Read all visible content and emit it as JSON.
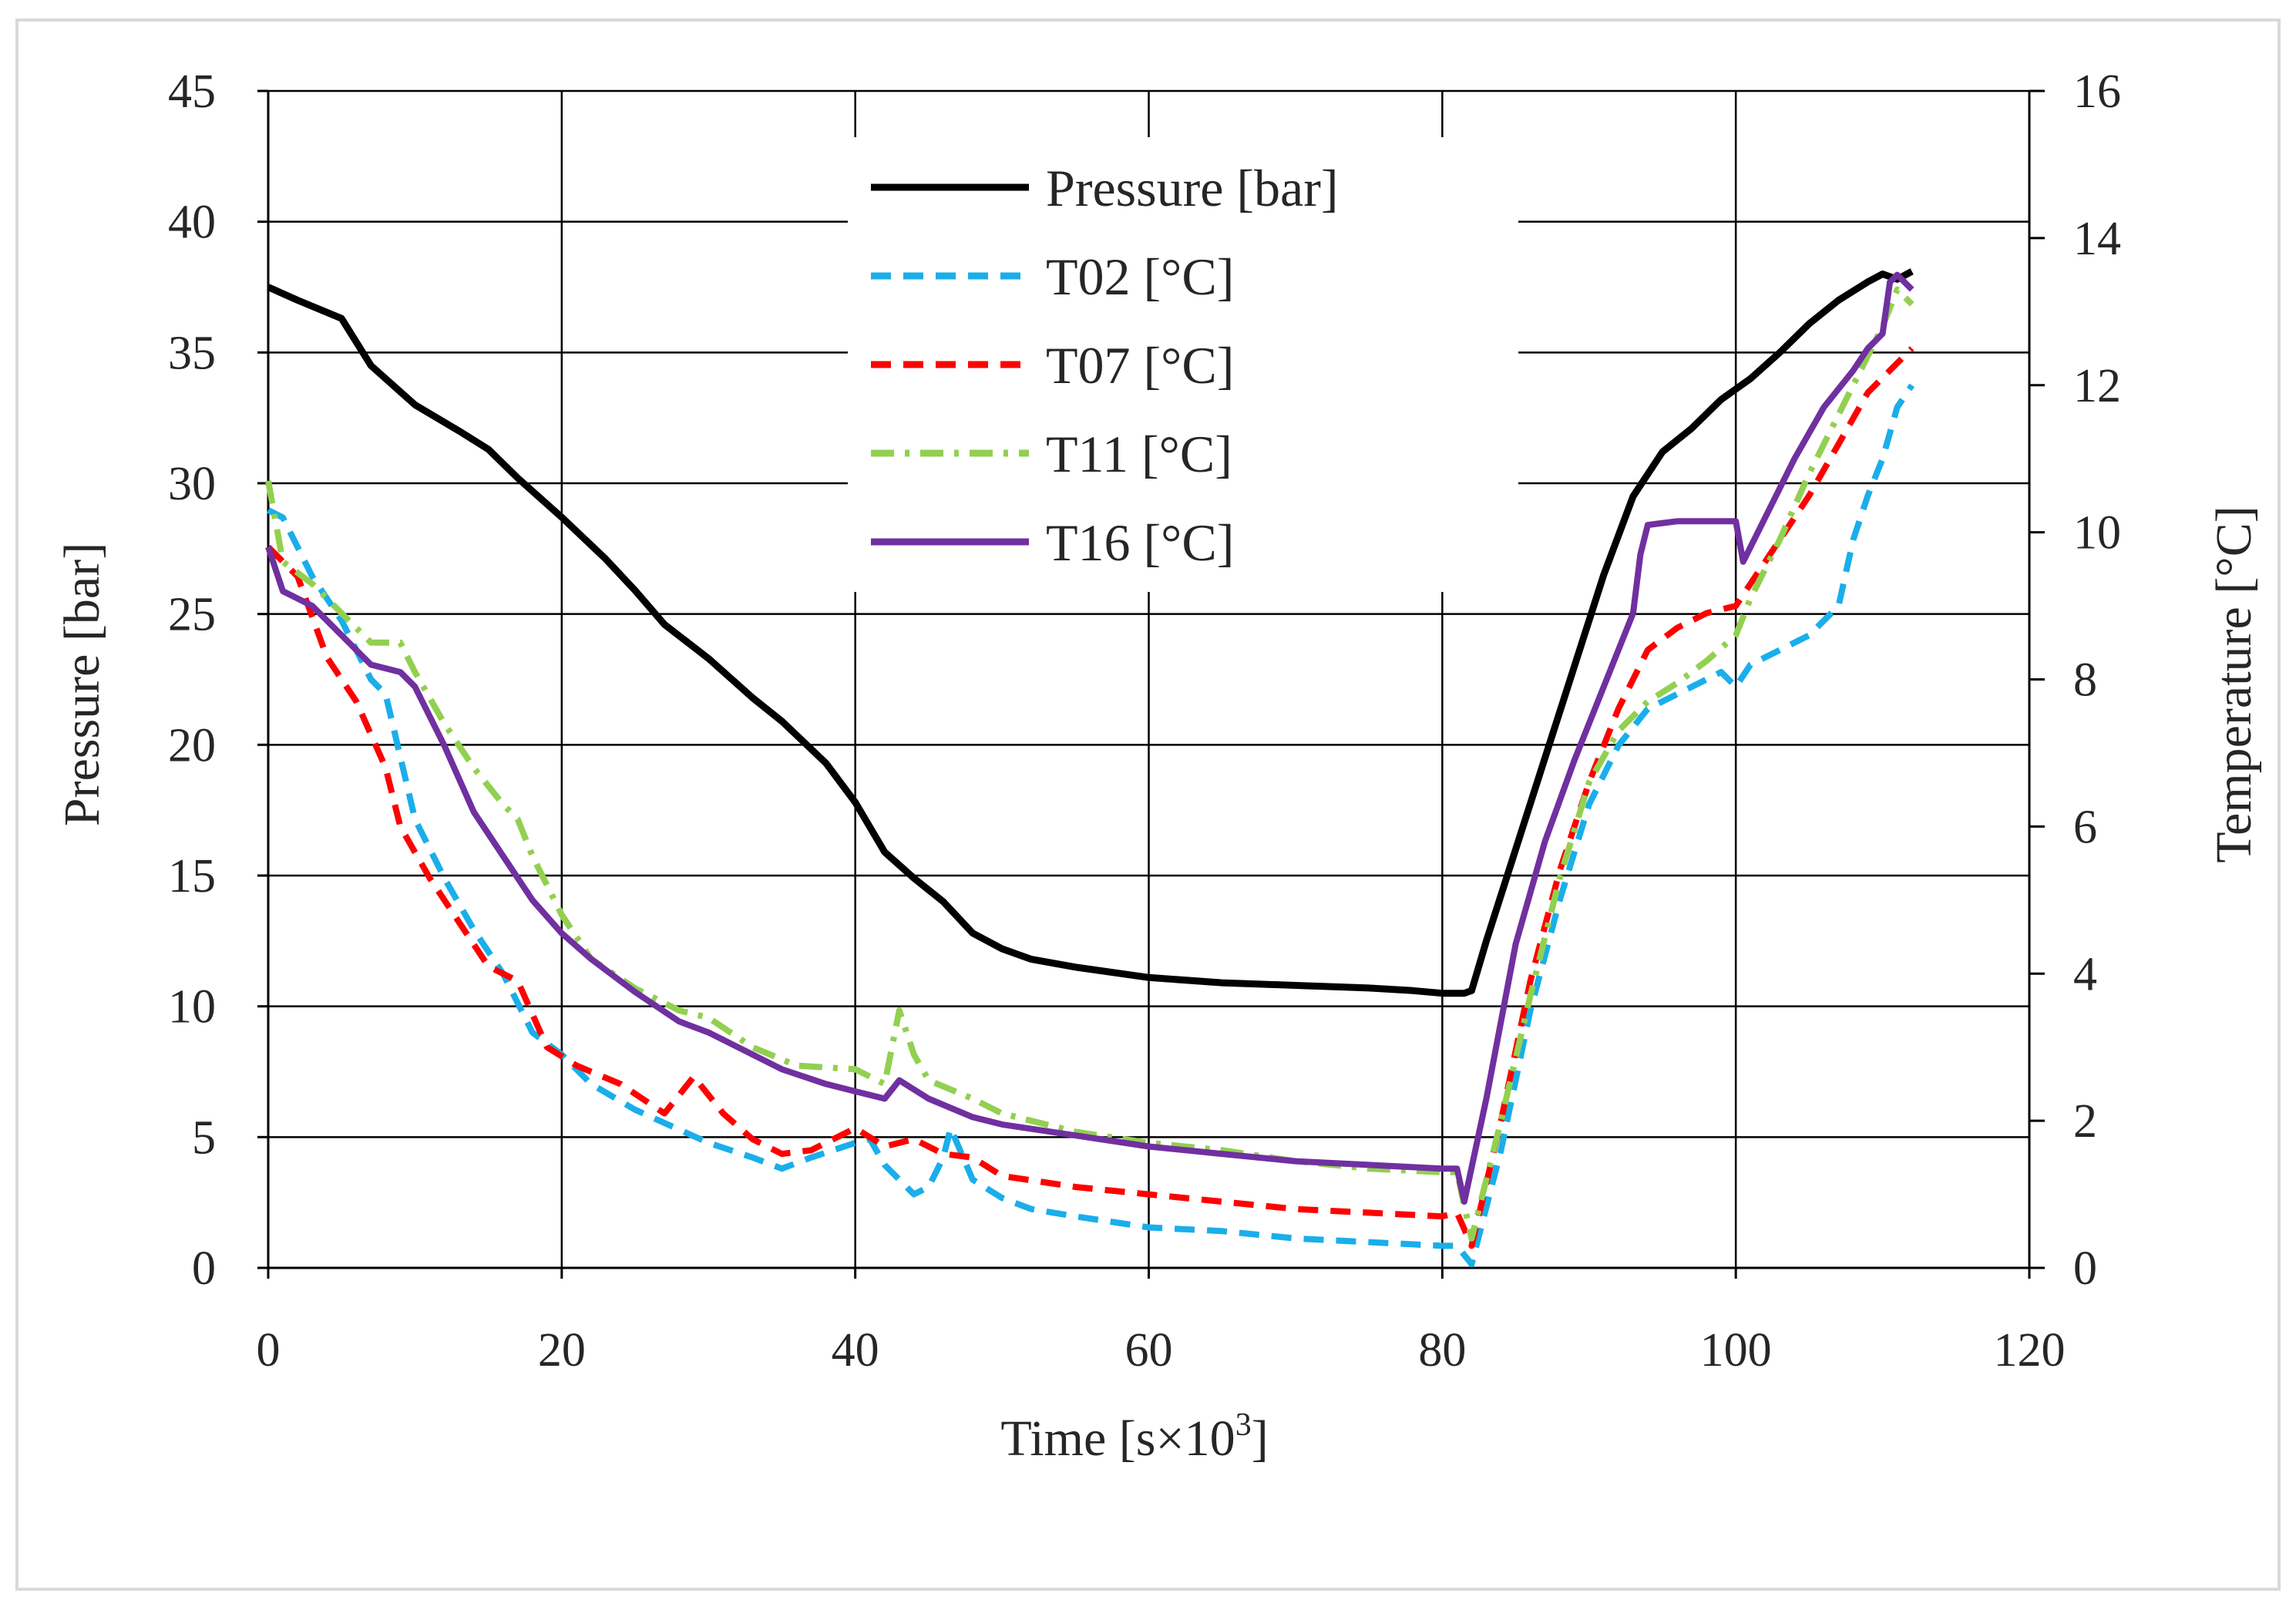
{
  "chart_data": {
    "type": "line",
    "title": "",
    "xlabel": "Time [s×10",
    "xlabel_sup": "3",
    "xlabel_end": "]",
    "ylabel": "Pressure [bar]",
    "y2label": "Temperature [°C]",
    "xlim": [
      0,
      120
    ],
    "ylim": [
      0,
      45
    ],
    "y2lim": [
      0,
      16
    ],
    "x_ticks": [
      "0",
      "20",
      "40",
      "60",
      "80",
      "100",
      "120"
    ],
    "y_ticks": [
      "0",
      "5",
      "10",
      "15",
      "20",
      "25",
      "30",
      "35",
      "40",
      "45"
    ],
    "y2_ticks": [
      "0",
      "2",
      "4",
      "6",
      "8",
      "10",
      "12",
      "14",
      "16"
    ],
    "grid": true,
    "legend_position": "top-center",
    "series": [
      {
        "name": "Pressure [bar]",
        "axis": "left",
        "color": "#000000",
        "style": "solid",
        "points": [
          [
            0,
            37.5
          ],
          [
            2,
            37
          ],
          [
            5,
            36.3
          ],
          [
            7,
            34.5
          ],
          [
            10,
            33
          ],
          [
            13,
            32
          ],
          [
            15,
            31.3
          ],
          [
            17,
            30.2
          ],
          [
            20,
            28.7
          ],
          [
            23,
            27.1
          ],
          [
            25,
            25.9
          ],
          [
            27,
            24.6
          ],
          [
            30,
            23.3
          ],
          [
            33,
            21.8
          ],
          [
            35,
            20.9
          ],
          [
            38,
            19.3
          ],
          [
            40,
            17.8
          ],
          [
            42,
            15.9
          ],
          [
            44,
            14.9
          ],
          [
            46,
            14.0
          ],
          [
            48,
            12.8
          ],
          [
            50,
            12.2
          ],
          [
            52,
            11.8
          ],
          [
            55,
            11.5
          ],
          [
            60,
            11.1
          ],
          [
            65,
            10.9
          ],
          [
            70,
            10.8
          ],
          [
            75,
            10.7
          ],
          [
            78,
            10.6
          ],
          [
            80,
            10.5
          ],
          [
            81.5,
            10.5
          ],
          [
            82,
            10.6
          ],
          [
            83,
            12.5
          ],
          [
            85,
            16.0
          ],
          [
            87,
            19.5
          ],
          [
            89,
            23
          ],
          [
            91,
            26.5
          ],
          [
            93,
            29.5
          ],
          [
            95,
            31.2
          ],
          [
            97,
            32.1
          ],
          [
            99,
            33.2
          ],
          [
            101,
            34
          ],
          [
            103,
            35
          ],
          [
            105,
            36.1
          ],
          [
            107,
            37
          ],
          [
            109,
            37.7
          ],
          [
            110,
            38
          ],
          [
            111,
            37.8
          ],
          [
            112,
            38.1
          ]
        ]
      },
      {
        "name": "T02 [°C]",
        "axis": "right",
        "color": "#1aaeea",
        "style": "dashed",
        "points": [
          [
            0,
            10.3
          ],
          [
            1,
            10.2
          ],
          [
            3,
            9.4
          ],
          [
            5,
            8.8
          ],
          [
            7,
            8.0
          ],
          [
            8,
            7.8
          ],
          [
            10,
            6.1
          ],
          [
            12,
            5.3
          ],
          [
            14,
            4.6
          ],
          [
            16,
            4.0
          ],
          [
            18,
            3.2
          ],
          [
            20,
            2.9
          ],
          [
            22,
            2.5
          ],
          [
            25,
            2.15
          ],
          [
            30,
            1.7
          ],
          [
            33,
            1.5
          ],
          [
            35,
            1.35
          ],
          [
            37,
            1.5
          ],
          [
            40,
            1.7
          ],
          [
            41,
            1.75
          ],
          [
            42,
            1.4
          ],
          [
            44,
            1.0
          ],
          [
            45,
            1.1
          ],
          [
            46,
            1.5
          ],
          [
            46.5,
            1.9
          ],
          [
            48,
            1.2
          ],
          [
            50,
            0.95
          ],
          [
            52,
            0.8
          ],
          [
            55,
            0.7
          ],
          [
            60,
            0.55
          ],
          [
            65,
            0.5
          ],
          [
            70,
            0.4
          ],
          [
            75,
            0.35
          ],
          [
            80,
            0.3
          ],
          [
            81,
            0.3
          ],
          [
            82,
            0.05
          ],
          [
            84,
            1.6
          ],
          [
            86,
            3.5
          ],
          [
            88,
            5.0
          ],
          [
            90,
            6.3
          ],
          [
            92,
            7.1
          ],
          [
            94,
            7.6
          ],
          [
            96,
            7.8
          ],
          [
            99,
            8.1
          ],
          [
            100,
            7.9
          ],
          [
            101,
            8.2
          ],
          [
            103,
            8.4
          ],
          [
            105,
            8.6
          ],
          [
            107,
            9.0
          ],
          [
            108,
            9.9
          ],
          [
            109,
            10.5
          ],
          [
            110,
            11.0
          ],
          [
            111,
            11.7
          ],
          [
            112,
            12.0
          ]
        ]
      },
      {
        "name": "T07 [°C]",
        "axis": "right",
        "color": "#ff0000",
        "style": "dashed",
        "points": [
          [
            0,
            9.8
          ],
          [
            2,
            9.4
          ],
          [
            4,
            8.3
          ],
          [
            6,
            7.7
          ],
          [
            8,
            6.8
          ],
          [
            9,
            6.0
          ],
          [
            11,
            5.3
          ],
          [
            13,
            4.7
          ],
          [
            15,
            4.1
          ],
          [
            17,
            3.9
          ],
          [
            19,
            3.0
          ],
          [
            21,
            2.75
          ],
          [
            24,
            2.5
          ],
          [
            27,
            2.1
          ],
          [
            29,
            2.6
          ],
          [
            31,
            2.1
          ],
          [
            33,
            1.75
          ],
          [
            35,
            1.55
          ],
          [
            37,
            1.6
          ],
          [
            40,
            1.9
          ],
          [
            42,
            1.65
          ],
          [
            44,
            1.75
          ],
          [
            46,
            1.55
          ],
          [
            48,
            1.5
          ],
          [
            50,
            1.25
          ],
          [
            55,
            1.1
          ],
          [
            60,
            1.0
          ],
          [
            65,
            0.9
          ],
          [
            70,
            0.8
          ],
          [
            75,
            0.75
          ],
          [
            80,
            0.7
          ],
          [
            81,
            0.75
          ],
          [
            82,
            0.3
          ],
          [
            84,
            2.0
          ],
          [
            86,
            3.9
          ],
          [
            88,
            5.4
          ],
          [
            90,
            6.6
          ],
          [
            92,
            7.6
          ],
          [
            94,
            8.4
          ],
          [
            96,
            8.7
          ],
          [
            98,
            8.9
          ],
          [
            100,
            9.0
          ],
          [
            101,
            9.3
          ],
          [
            103,
            9.9
          ],
          [
            105,
            10.5
          ],
          [
            107,
            11.2
          ],
          [
            109,
            11.9
          ],
          [
            111,
            12.3
          ],
          [
            112,
            12.5
          ]
        ]
      },
      {
        "name": "T11 [°C]",
        "axis": "right",
        "color": "#92d050",
        "style": "dashdot",
        "points": [
          [
            0,
            10.7
          ],
          [
            1,
            9.6
          ],
          [
            3,
            9.3
          ],
          [
            5,
            8.9
          ],
          [
            7,
            8.5
          ],
          [
            9,
            8.5
          ],
          [
            10,
            8.1
          ],
          [
            12,
            7.4
          ],
          [
            14,
            6.8
          ],
          [
            16,
            6.3
          ],
          [
            17,
            6.1
          ],
          [
            18,
            5.6
          ],
          [
            20,
            4.8
          ],
          [
            22,
            4.2
          ],
          [
            25,
            3.8
          ],
          [
            28,
            3.5
          ],
          [
            30,
            3.4
          ],
          [
            33,
            3.0
          ],
          [
            36,
            2.75
          ],
          [
            40,
            2.7
          ],
          [
            42,
            2.5
          ],
          [
            43,
            3.5
          ],
          [
            44,
            2.9
          ],
          [
            45,
            2.55
          ],
          [
            48,
            2.3
          ],
          [
            50,
            2.1
          ],
          [
            55,
            1.85
          ],
          [
            60,
            1.7
          ],
          [
            65,
            1.6
          ],
          [
            70,
            1.45
          ],
          [
            75,
            1.35
          ],
          [
            80,
            1.3
          ],
          [
            81,
            1.3
          ],
          [
            82,
            0.4
          ],
          [
            84,
            2.0
          ],
          [
            86,
            3.7
          ],
          [
            88,
            5.3
          ],
          [
            90,
            6.6
          ],
          [
            92,
            7.3
          ],
          [
            94,
            7.7
          ],
          [
            96,
            7.95
          ],
          [
            98,
            8.25
          ],
          [
            100,
            8.6
          ],
          [
            101,
            9.1
          ],
          [
            103,
            9.9
          ],
          [
            105,
            10.8
          ],
          [
            107,
            11.6
          ],
          [
            109,
            12.4
          ],
          [
            110,
            12.8
          ],
          [
            111,
            13.3
          ],
          [
            112,
            13.1
          ]
        ]
      },
      {
        "name": "T16 [°C]",
        "axis": "right",
        "color": "#7030a0",
        "style": "solid",
        "points": [
          [
            0,
            9.8
          ],
          [
            1,
            9.2
          ],
          [
            3,
            9.0
          ],
          [
            5,
            8.6
          ],
          [
            7,
            8.2
          ],
          [
            9,
            8.1
          ],
          [
            10,
            7.9
          ],
          [
            12,
            7.1
          ],
          [
            14,
            6.2
          ],
          [
            16,
            5.6
          ],
          [
            18,
            5.0
          ],
          [
            20,
            4.55
          ],
          [
            22,
            4.2
          ],
          [
            25,
            3.75
          ],
          [
            28,
            3.35
          ],
          [
            30,
            3.2
          ],
          [
            33,
            2.9
          ],
          [
            35,
            2.7
          ],
          [
            38,
            2.5
          ],
          [
            40,
            2.4
          ],
          [
            42,
            2.3
          ],
          [
            43,
            2.55
          ],
          [
            45,
            2.3
          ],
          [
            48,
            2.05
          ],
          [
            50,
            1.95
          ],
          [
            55,
            1.8
          ],
          [
            60,
            1.65
          ],
          [
            65,
            1.55
          ],
          [
            70,
            1.45
          ],
          [
            75,
            1.4
          ],
          [
            80,
            1.35
          ],
          [
            81,
            1.35
          ],
          [
            81.5,
            0.9
          ],
          [
            83,
            2.3
          ],
          [
            85,
            4.4
          ],
          [
            87,
            5.8
          ],
          [
            89,
            6.9
          ],
          [
            91,
            7.9
          ],
          [
            93,
            8.9
          ],
          [
            93.5,
            9.7
          ],
          [
            94,
            10.1
          ],
          [
            96,
            10.15
          ],
          [
            98,
            10.15
          ],
          [
            100,
            10.15
          ],
          [
            100.5,
            9.6
          ],
          [
            102,
            10.2
          ],
          [
            104,
            11.0
          ],
          [
            106,
            11.7
          ],
          [
            108,
            12.2
          ],
          [
            109,
            12.5
          ],
          [
            110,
            12.7
          ],
          [
            110.5,
            13.4
          ],
          [
            111,
            13.5
          ],
          [
            112,
            13.3
          ]
        ]
      }
    ]
  }
}
